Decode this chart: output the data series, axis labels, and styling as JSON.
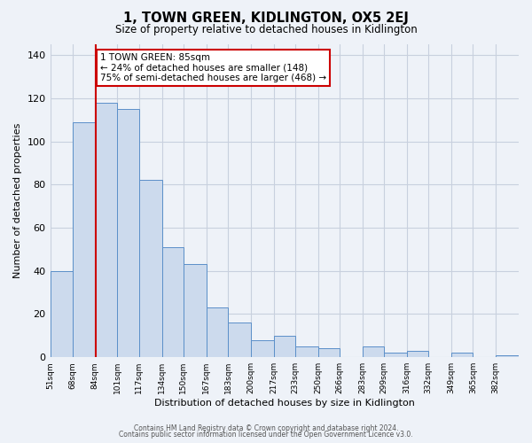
{
  "title": "1, TOWN GREEN, KIDLINGTON, OX5 2EJ",
  "subtitle": "Size of property relative to detached houses in Kidlington",
  "xlabel": "Distribution of detached houses by size in Kidlington",
  "ylabel": "Number of detached properties",
  "bin_labels": [
    "51sqm",
    "68sqm",
    "84sqm",
    "101sqm",
    "117sqm",
    "134sqm",
    "150sqm",
    "167sqm",
    "183sqm",
    "200sqm",
    "217sqm",
    "233sqm",
    "250sqm",
    "266sqm",
    "283sqm",
    "299sqm",
    "316sqm",
    "332sqm",
    "349sqm",
    "365sqm",
    "382sqm"
  ],
  "bin_edges": [
    51,
    68,
    84,
    101,
    117,
    134,
    150,
    167,
    183,
    200,
    217,
    233,
    250,
    266,
    283,
    299,
    316,
    332,
    349,
    365,
    382,
    399
  ],
  "bar_heights": [
    40,
    109,
    118,
    115,
    82,
    51,
    43,
    23,
    16,
    8,
    10,
    5,
    4,
    0,
    5,
    2,
    3,
    0,
    2,
    0,
    1
  ],
  "bar_color": "#ccdaed",
  "bar_edge_color": "#5b8fc9",
  "marker_value": 85,
  "marker_color": "#cc0000",
  "annotation_title": "1 TOWN GREEN: 85sqm",
  "annotation_line1": "← 24% of detached houses are smaller (148)",
  "annotation_line2": "75% of semi-detached houses are larger (468) →",
  "annotation_box_facecolor": "#ffffff",
  "annotation_box_edgecolor": "#cc0000",
  "bg_color": "#eef2f8",
  "grid_color": "#c8d0de",
  "footer1": "Contains HM Land Registry data © Crown copyright and database right 2024.",
  "footer2": "Contains public sector information licensed under the Open Government Licence v3.0.",
  "ylim": [
    0,
    145
  ],
  "yticks": [
    0,
    20,
    40,
    60,
    80,
    100,
    120,
    140
  ]
}
